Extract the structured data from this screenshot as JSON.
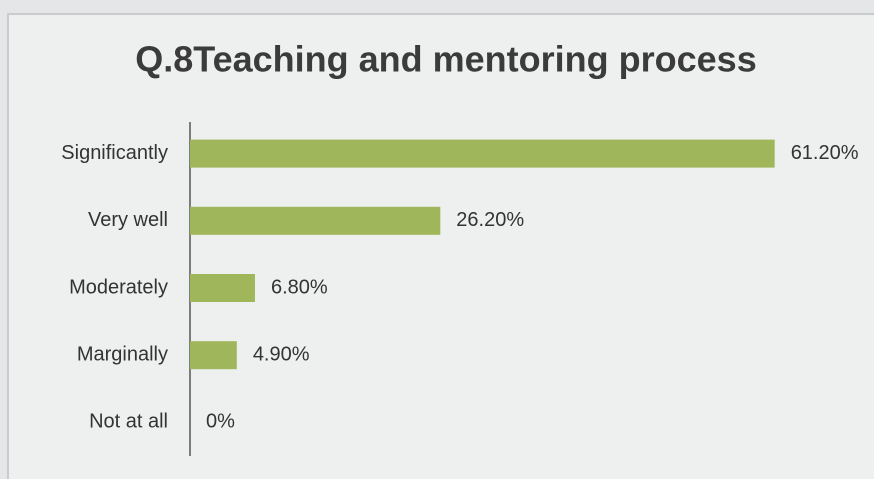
{
  "chart_data": {
    "type": "bar",
    "orientation": "horizontal",
    "title": "Q.8Teaching and mentoring process",
    "categories": [
      "Significantly",
      "Very well",
      "Moderately",
      "Marginally",
      "Not at all"
    ],
    "values": [
      61.2,
      26.2,
      6.8,
      4.9,
      0
    ],
    "value_labels": [
      "61.20%",
      "26.20%",
      "6.80%",
      "4.90%",
      "0%"
    ],
    "color": "#9fb65a",
    "xlim": [
      0,
      65
    ]
  }
}
